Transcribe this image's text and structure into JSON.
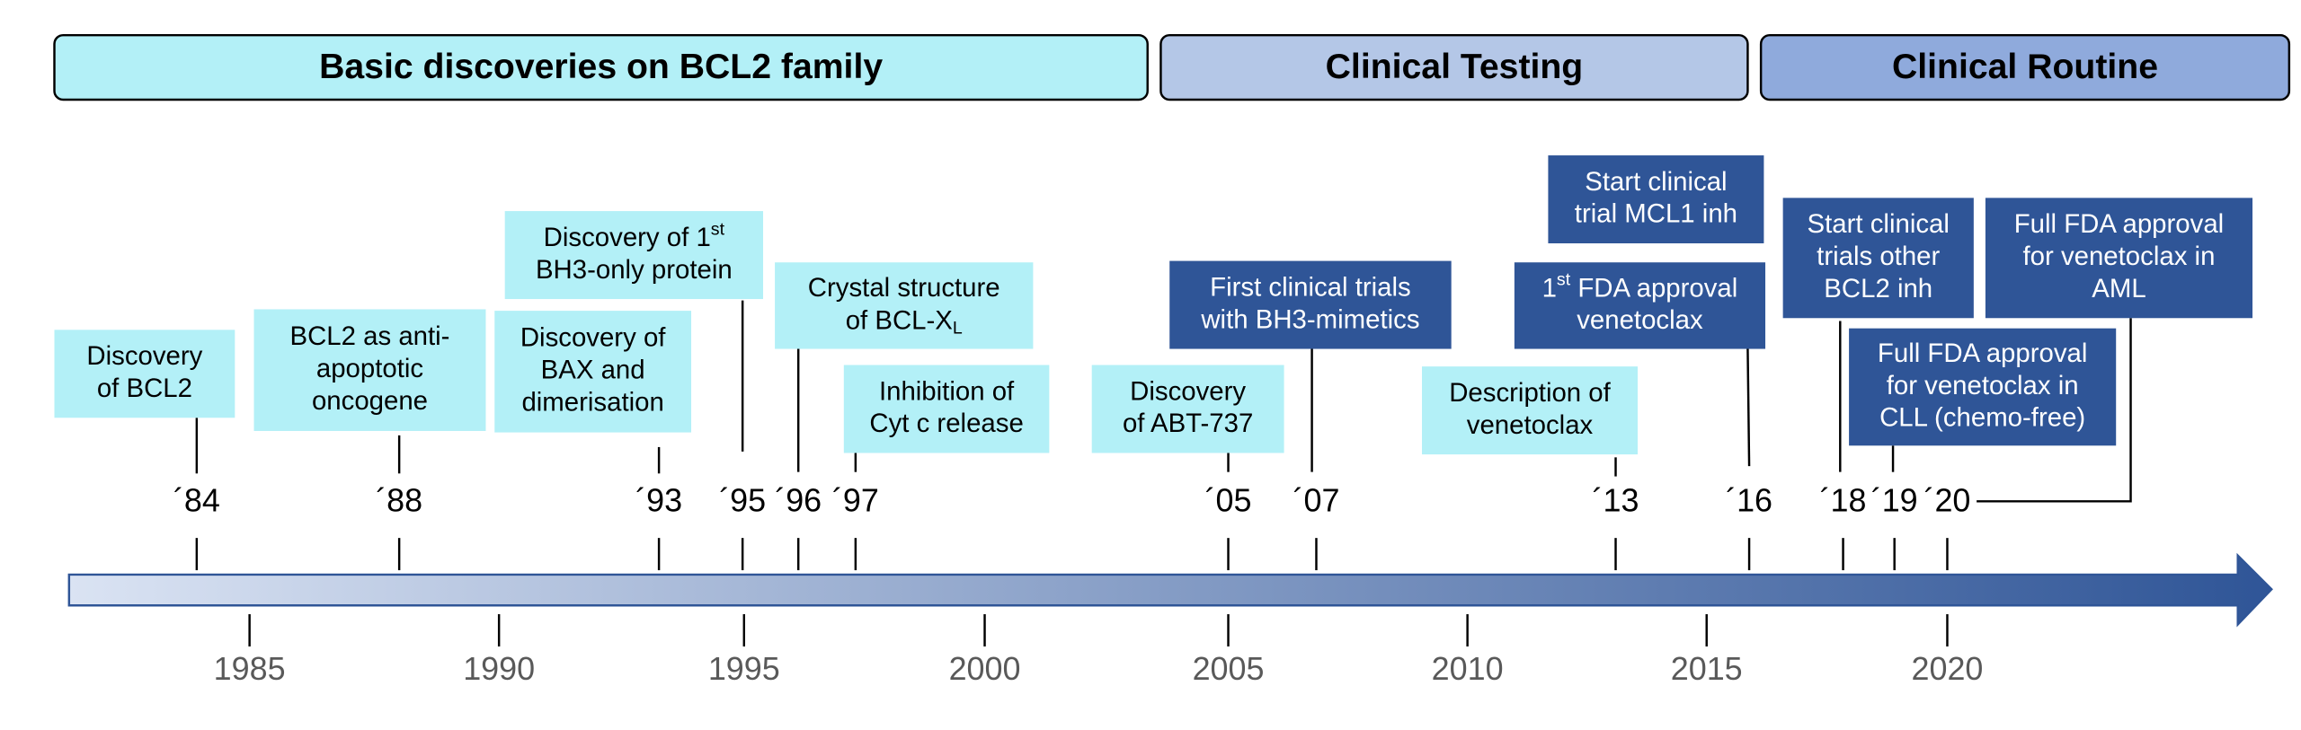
{
  "phases": [
    "Basic discoveries on BCL2 family",
    "Clinical Testing",
    "Clinical Routine"
  ],
  "events": [
    {
      "lines": [
        "Discovery",
        "of BCL2"
      ]
    },
    {
      "lines": [
        "BCL2 as anti-",
        "apoptotic",
        "oncogene"
      ]
    },
    {
      "lines": [
        "Discovery of",
        "BAX and",
        "dimerisation"
      ]
    },
    {
      "lines": [
        {
          "text": "Discovery of 1",
          "sup": "st"
        },
        "BH3-only protein"
      ]
    },
    {
      "lines": [
        "Crystal structure",
        {
          "text": "of BCL-X",
          "sub": "L"
        }
      ]
    },
    {
      "lines": [
        "Inhibition of",
        "Cyt c release"
      ]
    },
    {
      "lines": [
        "Discovery",
        "of ABT-737"
      ]
    },
    {
      "lines": [
        "First clinical trials",
        "with BH3-mimetics"
      ]
    },
    {
      "lines": [
        "Description of",
        "venetoclax"
      ]
    },
    {
      "lines": [
        "Start clinical",
        "trial MCL1 inh"
      ]
    },
    {
      "lines": [
        {
          "text": "1",
          "sup": "st",
          "rest": " FDA approval"
        },
        "venetoclax"
      ]
    },
    {
      "lines": [
        "Start clinical",
        "trials other",
        "BCL2 inh"
      ]
    },
    {
      "lines": [
        "Full FDA approval",
        "for venetoclax in",
        "AML"
      ]
    },
    {
      "lines": [
        "Full FDA approval",
        "for venetoclax in",
        "CLL (chemo-free)"
      ]
    }
  ],
  "year_labels": [
    "´84",
    "´88",
    "´93",
    "´95",
    "´96",
    "´97",
    "´05",
    "´07",
    "´13",
    "´16",
    "´18",
    "´19",
    "´20"
  ],
  "axis_years": [
    "1985",
    "1990",
    "1995",
    "2000",
    "2005",
    "2010",
    "2015",
    "2020"
  ]
}
